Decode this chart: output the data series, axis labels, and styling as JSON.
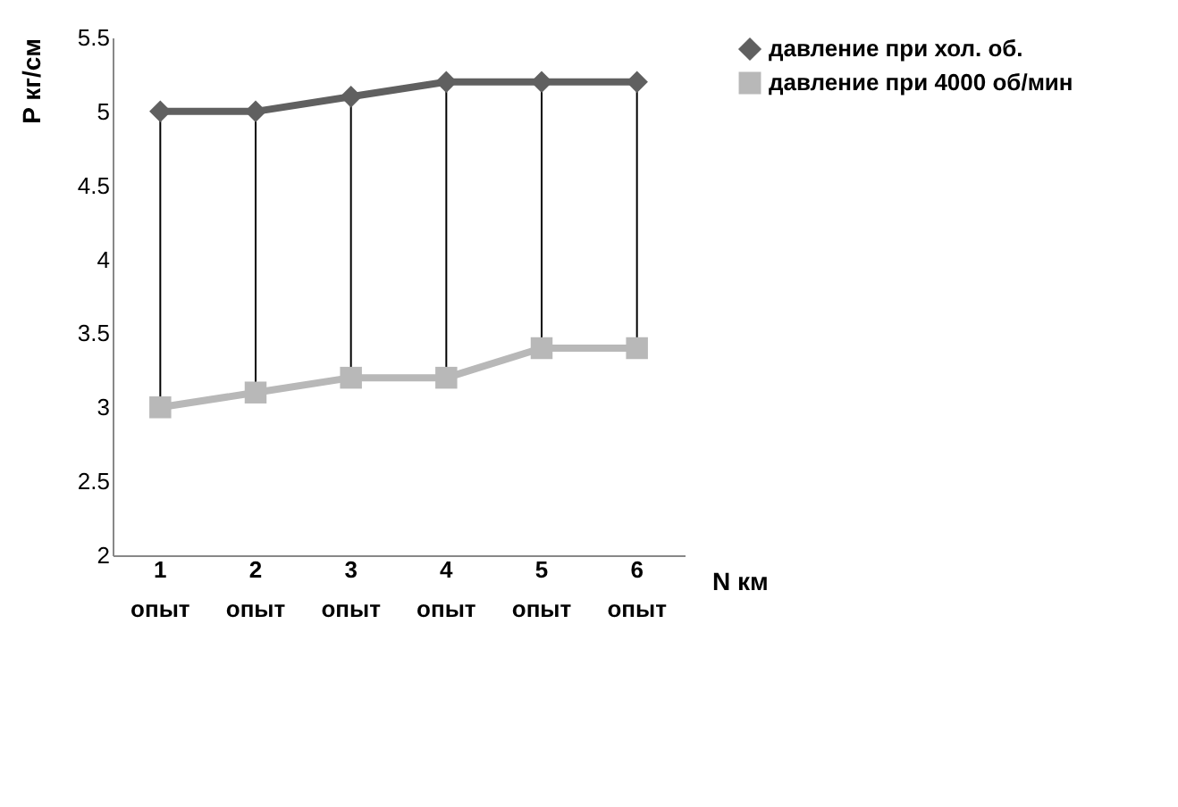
{
  "chart_data": {
    "type": "line",
    "ylabel": "P кг/см",
    "xlabel": "N км",
    "categories": [
      "1\nопыт",
      "2\nопыт",
      "3\nопыт",
      "4\nопыт",
      "5\nопыт",
      "6\nопыт"
    ],
    "series": [
      {
        "name": "давление при хол. об.",
        "color": "#606060",
        "marker": "diamond",
        "values": [
          5,
          5,
          5.1,
          5.2,
          5.2,
          5.2
        ]
      },
      {
        "name": "давление при 4000 об/мин",
        "color": "#b8b8b8",
        "marker": "square",
        "values": [
          3,
          3.1,
          3.2,
          3.2,
          3.4,
          3.4
        ]
      }
    ],
    "ylim": [
      2,
      5.5
    ],
    "yticks": [
      2,
      2.5,
      3,
      3.5,
      4,
      4.5,
      5,
      5.5
    ],
    "grid": false,
    "legend": "right"
  }
}
